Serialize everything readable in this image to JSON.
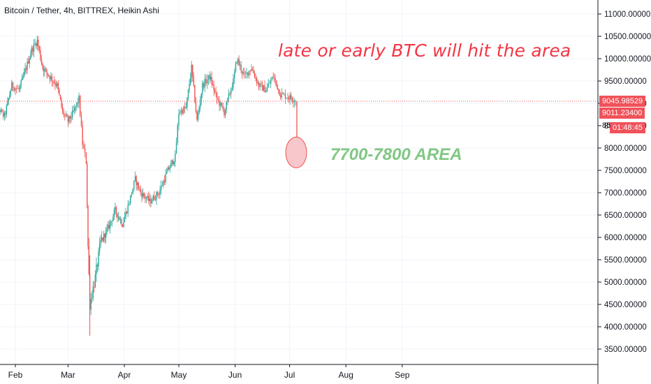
{
  "header": {
    "title": "Bitcoin / Tether, 4h, BITTREX, Heikin Ashi"
  },
  "annotations": {
    "headline": "late or early BTC will hit the area",
    "target_area": "7700-7800 AREA"
  },
  "price_tags": {
    "last_price": "9045.98529",
    "second_price": "9011.23400",
    "countdown": "01:48:45",
    "partial_tick": "85"
  },
  "colors": {
    "up": "#26a69a",
    "down": "#ef5350",
    "annotation_red": "#f23645",
    "annotation_green": "#81c784",
    "price_tag": "#f0525a",
    "circle_fill": "#f8c7cc",
    "grid": "#f0f3fa",
    "axis_text": "#131722"
  },
  "chart_data": {
    "type": "candlestick",
    "title": "Bitcoin / Tether, 4h, BITTREX, Heikin Ashi",
    "xlabel": "",
    "ylabel": "",
    "x_tick_labels": [
      "Feb",
      "Mar",
      "Apr",
      "May",
      "Jun",
      "Jul",
      "Aug",
      "Sep"
    ],
    "y_tick_labels": [
      "3500.00000",
      "4000.00000",
      "4500.00000",
      "5000.00000",
      "5500.00000",
      "6000.00000",
      "6500.00000",
      "7000.00000",
      "7500.00000",
      "8000.00000",
      "8500.00000",
      "9000.00000",
      "9500.00000",
      "10000.00000",
      "10500.00000",
      "11000.00000"
    ],
    "ylim": [
      3250,
      11250
    ],
    "grid": true,
    "series": [
      {
        "name": "",
        "points": [
          [
            "2020-01-18",
            8300
          ],
          [
            "2020-01-22",
            8900
          ],
          [
            "2020-01-26",
            8700
          ],
          [
            "2020-01-30",
            9400
          ],
          [
            "2020-02-03",
            9300
          ],
          [
            "2020-02-07",
            9800
          ],
          [
            "2020-02-10",
            10200
          ],
          [
            "2020-02-13",
            10400
          ],
          [
            "2020-02-16",
            9800
          ],
          [
            "2020-02-20",
            9600
          ],
          [
            "2020-02-24",
            9400
          ],
          [
            "2020-02-27",
            8800
          ],
          [
            "2020-03-01",
            8600
          ],
          [
            "2020-03-04",
            8800
          ],
          [
            "2020-03-07",
            9100
          ],
          [
            "2020-03-09",
            8100
          ],
          [
            "2020-03-11",
            7700
          ],
          [
            "2020-03-12",
            5800
          ],
          [
            "2020-03-13",
            4500
          ],
          [
            "2020-03-16",
            5100
          ],
          [
            "2020-03-19",
            5900
          ],
          [
            "2020-03-23",
            6200
          ],
          [
            "2020-03-27",
            6600
          ],
          [
            "2020-03-31",
            6300
          ],
          [
            "2020-04-03",
            6700
          ],
          [
            "2020-04-07",
            7300
          ],
          [
            "2020-04-10",
            7000
          ],
          [
            "2020-04-15",
            6800
          ],
          [
            "2020-04-20",
            7000
          ],
          [
            "2020-04-25",
            7500
          ],
          [
            "2020-04-29",
            7800
          ],
          [
            "2020-05-01",
            8800
          ],
          [
            "2020-05-05",
            8900
          ],
          [
            "2020-05-08",
            9800
          ],
          [
            "2020-05-11",
            8600
          ],
          [
            "2020-05-14",
            9400
          ],
          [
            "2020-05-18",
            9600
          ],
          [
            "2020-05-22",
            9100
          ],
          [
            "2020-05-26",
            8800
          ],
          [
            "2020-05-31",
            9500
          ],
          [
            "2020-06-02",
            10000
          ],
          [
            "2020-06-06",
            9600
          ],
          [
            "2020-06-10",
            9800
          ],
          [
            "2020-06-14",
            9400
          ],
          [
            "2020-06-18",
            9300
          ],
          [
            "2020-06-22",
            9600
          ],
          [
            "2020-06-26",
            9200
          ],
          [
            "2020-06-30",
            9150
          ],
          [
            "2020-07-03",
            9100
          ],
          [
            "2020-07-05",
            9045.98529
          ]
        ]
      }
    ],
    "markers": [
      {
        "label": "7700-7800 AREA",
        "value_range": [
          7700,
          7800
        ]
      },
      {
        "label": "9045.98529",
        "value": 9045.98529,
        "type": "horizontal-line"
      }
    ]
  }
}
